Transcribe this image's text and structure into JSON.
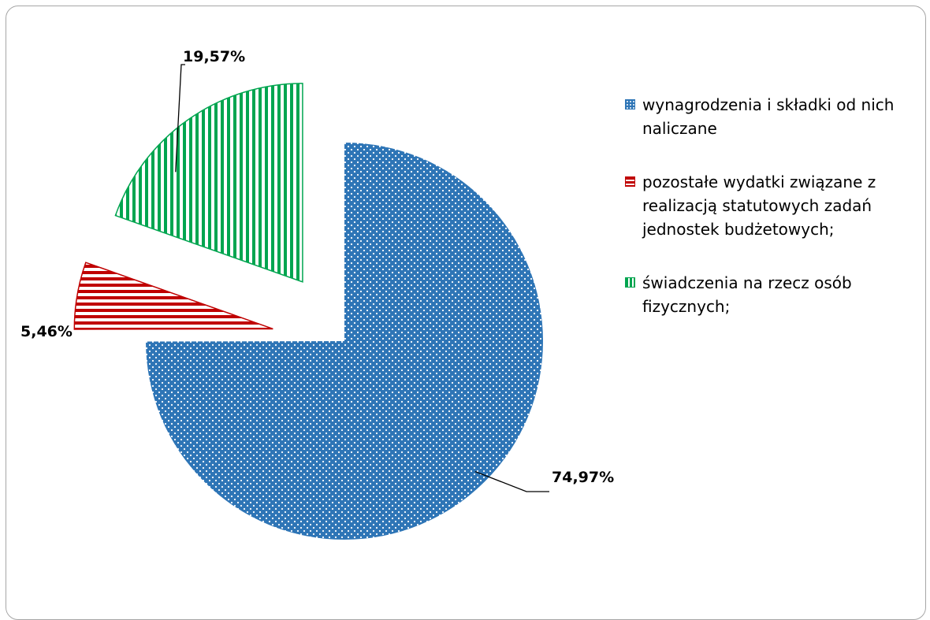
{
  "chart_data": {
    "type": "pie",
    "title": "",
    "slices": [
      {
        "label": "wynagrodzenia i składki od nich naliczane",
        "value": 74.97,
        "value_label": "74,97%",
        "color": "#2e75b6",
        "pattern": "dots",
        "exploded": false
      },
      {
        "label": "pozostałe wydatki związane z realizacją statutowych zadań jednostek budżetowych;",
        "value": 5.46,
        "value_label": "5,46%",
        "color": "#c00000",
        "pattern": "horizontal-stripes",
        "exploded": true
      },
      {
        "label": "świadczenia na rzecz osób fizycznych;",
        "value": 19.57,
        "value_label": "19,57%",
        "color": "#00a550",
        "pattern": "vertical-stripes",
        "exploded": true
      }
    ],
    "legend_position": "right"
  }
}
